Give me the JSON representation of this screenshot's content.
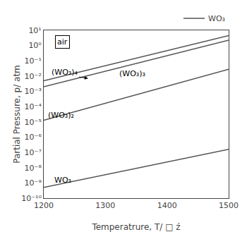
{
  "chart_data": {
    "type": "line",
    "xlabel": "Temperatrure, T/ □ ź",
    "ylabel": "Partial Pressure, p/ atm",
    "log": "y",
    "grid": false,
    "legend": "upper right",
    "xlim": [
      1200,
      1500
    ],
    "ylim": [
      1e-10,
      10
    ],
    "xticks": [
      1200,
      1300,
      1400,
      1500
    ],
    "yticks": [
      {
        "value": 1e-10,
        "label": "10⁻¹⁰"
      },
      {
        "value": 1e-09,
        "label": "10⁻⁹"
      },
      {
        "value": 1e-08,
        "label": "10⁻⁸"
      },
      {
        "value": 1e-07,
        "label": "10⁻⁷"
      },
      {
        "value": 1e-06,
        "label": "10⁻⁶"
      },
      {
        "value": 1e-05,
        "label": "10⁻⁵"
      },
      {
        "value": 0.0001,
        "label": "10⁻⁴"
      },
      {
        "value": 0.001,
        "label": "10⁻³"
      },
      {
        "value": 0.01,
        "label": "10⁻²"
      },
      {
        "value": 0.1,
        "label": "10⁻¹"
      },
      {
        "value": 1,
        "label": "10⁰"
      },
      {
        "value": 10,
        "label": "10¹"
      }
    ],
    "x": [
      1200,
      1500
    ],
    "series": [
      {
        "name": "WO₃",
        "color": "#555555",
        "values": [
          5.011872336272725e-10,
          1.584893192461114e-07
        ]
      },
      {
        "color": "#555555",
        "values": [
          1.2589254117941673e-05,
          0.028183829312644536
        ]
      },
      {
        "color": "#555555",
        "values": [
          0.001995262314968879,
          2.2387211385683394
        ]
      },
      {
        "color": "#555555",
        "values": [
          0.005011872336272725,
          4.466835921509632
        ]
      }
    ],
    "annotations": [
      {
        "text": "WO₃",
        "x": 1215,
        "y": 1.584893192461114e-09
      },
      {
        "text": "(WO₃)₂",
        "x": 1205,
        "y": 2.8183829312644535e-05
      },
      {
        "text": "(WO₃)₃",
        "x": 1320,
        "y": 0.01412537544622754
      },
      {
        "text": "(WO₃)₄",
        "x": 1210,
        "y": 0.01778279410038923,
        "arrow_x": 1272,
        "arrow_y": 0.007079457843841379
      },
      {
        "text": "air"
      }
    ]
  }
}
